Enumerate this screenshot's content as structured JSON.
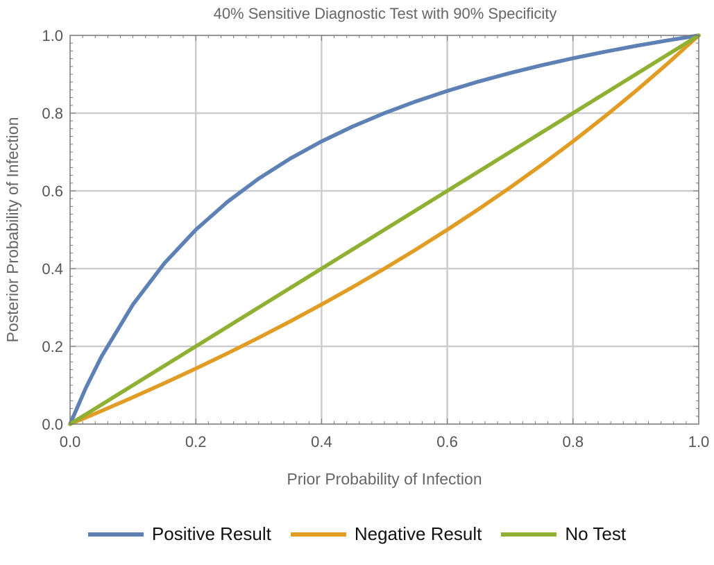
{
  "chart_data": {
    "type": "line",
    "title": "40% Sensitive Diagnostic Test with 90% Specificity",
    "xlabel": "Prior Probability of Infection",
    "ylabel": "Posterior Probability of Infection",
    "xlim": [
      0,
      1
    ],
    "ylim": [
      0,
      1
    ],
    "xticks": [
      "0.0",
      "0.2",
      "0.4",
      "0.6",
      "0.8",
      "1.0"
    ],
    "yticks": [
      "0.0",
      "0.2",
      "0.4",
      "0.6",
      "0.8",
      "1.0"
    ],
    "grid": true,
    "legend_position": "bottom",
    "x": [
      0,
      0.025,
      0.05,
      0.1,
      0.15,
      0.2,
      0.25,
      0.3,
      0.35,
      0.4,
      0.45,
      0.5,
      0.55,
      0.6,
      0.65,
      0.7,
      0.75,
      0.8,
      0.85,
      0.9,
      0.95,
      1
    ],
    "series": [
      {
        "name": "Positive Result",
        "color": "#5E81B5",
        "values": [
          0,
          0.093,
          0.1739,
          0.3077,
          0.4138,
          0.5,
          0.5714,
          0.6316,
          0.6829,
          0.7273,
          0.766,
          0.8,
          0.8302,
          0.8571,
          0.8814,
          0.9032,
          0.9231,
          0.9412,
          0.9577,
          0.973,
          0.987,
          1
        ]
      },
      {
        "name": "Negative Result",
        "color": "#E19C24",
        "values": [
          0,
          0.0168,
          0.0339,
          0.069,
          0.1053,
          0.1429,
          0.1818,
          0.2222,
          0.2642,
          0.3077,
          0.3529,
          0.4,
          0.449,
          0.5,
          0.5532,
          0.6087,
          0.6667,
          0.7273,
          0.7907,
          0.8571,
          0.9268,
          1
        ]
      },
      {
        "name": "No Test",
        "color": "#8FB032",
        "values": [
          0,
          0.025,
          0.05,
          0.1,
          0.15,
          0.2,
          0.25,
          0.3,
          0.35,
          0.4,
          0.45,
          0.5,
          0.55,
          0.6,
          0.65,
          0.7,
          0.75,
          0.8,
          0.85,
          0.9,
          0.95,
          1
        ]
      }
    ]
  }
}
